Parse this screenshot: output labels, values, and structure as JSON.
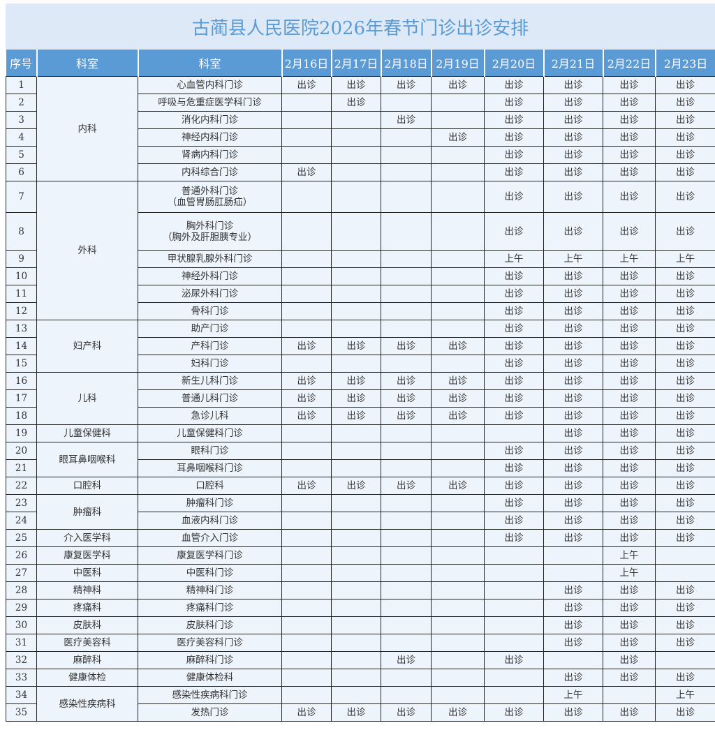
{
  "title": "古蔺县人民医院2026年春节门诊出诊安排",
  "headers": [
    "序号",
    "科室",
    "科室",
    "2月16日",
    "2月17日",
    "2月18日",
    "2月19日",
    "2月20日",
    "2月21日",
    "2月22日",
    "2月23日"
  ],
  "legend": {
    "C": "出诊",
    "S": "上午",
    "-": ""
  },
  "groups": [
    {
      "name": "内科",
      "rows": [
        {
          "no": "1",
          "clinic": "心血管内科门诊",
          "sched": "CCCCCCCC"
        },
        {
          "no": "2",
          "clinic": "呼吸与危重症医学科门诊",
          "sched": "-C--CCCC"
        },
        {
          "no": "3",
          "clinic": "消化内科门诊",
          "sched": "--C-CCCC"
        },
        {
          "no": "4",
          "clinic": "神经内科门诊",
          "sched": "---CCCCC"
        },
        {
          "no": "5",
          "clinic": "肾病内科门诊",
          "sched": "----CCCC"
        },
        {
          "no": "6",
          "clinic": "内科综合门诊",
          "sched": "C---CCCC"
        }
      ]
    },
    {
      "name": "外科",
      "rows": [
        {
          "no": "7",
          "clinic": "普通外科门诊\n（血管胃肠肛肠疝）",
          "sched": "----CCCC"
        },
        {
          "no": "8",
          "clinic": "胸外科门诊\n（胸外及肝胆胰专业）",
          "sched": "----CCCC"
        },
        {
          "no": "9",
          "clinic": "甲状腺乳腺外科门诊",
          "sched": "----SSSS"
        },
        {
          "no": "10",
          "clinic": "神经外科门诊",
          "sched": "----CCCC"
        },
        {
          "no": "11",
          "clinic": "泌尿外科门诊",
          "sched": "----CCCC"
        },
        {
          "no": "12",
          "clinic": "骨科门诊",
          "sched": "----CCCC"
        }
      ]
    },
    {
      "name": "妇产科",
      "rows": [
        {
          "no": "13",
          "clinic": "助产门诊",
          "sched": "----CCCC"
        },
        {
          "no": "14",
          "clinic": "产科门诊",
          "sched": "CCCCCCCC"
        },
        {
          "no": "15",
          "clinic": "妇科门诊",
          "sched": "----CCCC"
        }
      ]
    },
    {
      "name": "儿科",
      "rows": [
        {
          "no": "16",
          "clinic": "新生儿科门诊",
          "sched": "CCCCCCCC"
        },
        {
          "no": "17",
          "clinic": "普通儿科门诊",
          "sched": "CCCCCCCC"
        },
        {
          "no": "18",
          "clinic": "急诊儿科",
          "sched": "CCCCCCCC"
        }
      ]
    },
    {
      "name": "儿童保健科",
      "rows": [
        {
          "no": "19",
          "clinic": "儿童保健科门诊",
          "sched": "-----CCC"
        }
      ]
    },
    {
      "name": "眼耳鼻咽喉科",
      "rows": [
        {
          "no": "20",
          "clinic": "眼科门诊",
          "sched": "----CCCC"
        },
        {
          "no": "21",
          "clinic": "耳鼻咽喉科门诊",
          "sched": "----CCCC"
        }
      ]
    },
    {
      "name": "口腔科",
      "rows": [
        {
          "no": "22",
          "clinic": "口腔科",
          "sched": "CCCCCCCC"
        }
      ]
    },
    {
      "name": "肿瘤科",
      "rows": [
        {
          "no": "23",
          "clinic": "肿瘤科门诊",
          "sched": "----CCCC"
        },
        {
          "no": "24",
          "clinic": "血液内科门诊",
          "sched": "----CCCC"
        }
      ]
    },
    {
      "name": "介入医学科",
      "rows": [
        {
          "no": "25",
          "clinic": "血管介入门诊",
          "sched": "----CCCC"
        }
      ]
    },
    {
      "name": "康复医学科",
      "rows": [
        {
          "no": "26",
          "clinic": "康复医学科门诊",
          "sched": "------S-"
        }
      ]
    },
    {
      "name": "中医科",
      "rows": [
        {
          "no": "27",
          "clinic": "中医科门诊",
          "sched": "------S-"
        }
      ]
    },
    {
      "name": "精神科",
      "rows": [
        {
          "no": "28",
          "clinic": "精神科门诊",
          "sched": "-----CCC"
        }
      ]
    },
    {
      "name": "疼痛科",
      "rows": [
        {
          "no": "29",
          "clinic": "疼痛科门诊",
          "sched": "-----CCC"
        }
      ]
    },
    {
      "name": "皮肤科",
      "rows": [
        {
          "no": "30",
          "clinic": "皮肤科门诊",
          "sched": "-----CCC"
        }
      ]
    },
    {
      "name": "医疗美容科",
      "rows": [
        {
          "no": "31",
          "clinic": "医疗美容科门诊",
          "sched": "-----CCC"
        }
      ]
    },
    {
      "name": "麻醉科",
      "rows": [
        {
          "no": "32",
          "clinic": "麻醉科门诊",
          "sched": "--C-C-C-"
        }
      ]
    },
    {
      "name": "健康体检",
      "rows": [
        {
          "no": "33",
          "clinic": "健康体检科",
          "sched": "-----CCC"
        }
      ]
    },
    {
      "name": "感染性疾病科",
      "rows": [
        {
          "no": "34",
          "clinic": "感染性疾病科门诊",
          "sched": "-----S-S"
        },
        {
          "no": "35",
          "clinic": "发热门诊",
          "sched": "CCCCCCCC"
        }
      ]
    }
  ],
  "colors": {
    "title_bg": "#dde9f6",
    "title_text": "#5b9bd5",
    "header_bg": "#5b9bd5",
    "cell_bg": "#eef4fc"
  }
}
